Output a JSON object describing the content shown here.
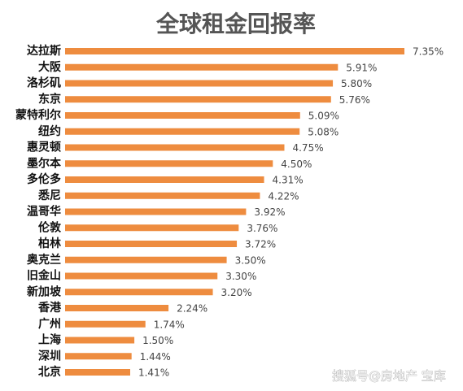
{
  "chart_data": {
    "type": "bar",
    "orientation": "horizontal",
    "title": "全球租金回报率",
    "categories": [
      "达拉斯",
      "大阪",
      "洛杉矶",
      "东京",
      "蒙特利尔",
      "纽约",
      "惠灵顿",
      "墨尔本",
      "多伦多",
      "悉尼",
      "温哥华",
      "伦敦",
      "柏林",
      "奥克兰",
      "旧金山",
      "新加坡",
      "香港",
      "广州",
      "上海",
      "深圳",
      "北京"
    ],
    "values": [
      7.35,
      5.91,
      5.8,
      5.76,
      5.09,
      5.08,
      4.75,
      4.5,
      4.31,
      4.22,
      3.92,
      3.76,
      3.72,
      3.5,
      3.3,
      3.2,
      2.24,
      1.74,
      1.5,
      1.44,
      1.41
    ],
    "value_labels": [
      "7.35%",
      "5.91%",
      "5.80%",
      "5.76%",
      "5.09%",
      "5.08%",
      "4.75%",
      "4.50%",
      "4.31%",
      "4.22%",
      "3.92%",
      "3.76%",
      "3.72%",
      "3.50%",
      "3.30%",
      "3.20%",
      "2.24%",
      "1.74%",
      "1.50%",
      "1.44%",
      "1.41%"
    ],
    "color": "#ee8c3f"
  },
  "watermark": "搜狐号@房地产 宝库"
}
